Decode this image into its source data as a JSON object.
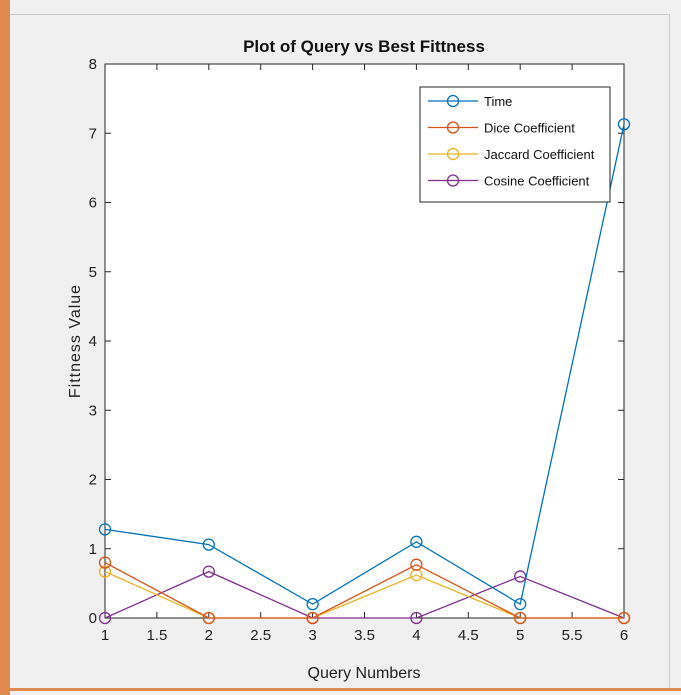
{
  "chart_data": {
    "type": "line",
    "title": "Plot of Query vs Best Fittness",
    "xlabel": "Query Numbers",
    "ylabel": "Fittness Value",
    "xlim": [
      1,
      6
    ],
    "ylim": [
      0,
      8
    ],
    "x_ticks": [
      "1",
      "1.5",
      "2",
      "2.5",
      "3",
      "3.5",
      "4",
      "4.5",
      "5",
      "5.5",
      "6"
    ],
    "y_ticks": [
      "0",
      "1",
      "2",
      "3",
      "4",
      "5",
      "6",
      "7",
      "8"
    ],
    "x": [
      1,
      2,
      3,
      4,
      5,
      6
    ],
    "grid": false,
    "legend_position": "top-right",
    "series": [
      {
        "name": "Time",
        "color": "#0072bd",
        "values": [
          1.28,
          1.06,
          0.2,
          1.1,
          0.2,
          7.13
        ]
      },
      {
        "name": "Dice Coefficient",
        "color": "#d95319",
        "values": [
          0.8,
          0,
          0,
          0.77,
          0,
          0
        ]
      },
      {
        "name": "Jaccard Coefficient",
        "color": "#edb120",
        "values": [
          0.67,
          0,
          0,
          0.62,
          0,
          0
        ]
      },
      {
        "name": "Cosine Coefficient",
        "color": "#7e2f8e",
        "values": [
          0,
          0.67,
          0,
          0,
          0.6,
          0
        ]
      }
    ]
  }
}
